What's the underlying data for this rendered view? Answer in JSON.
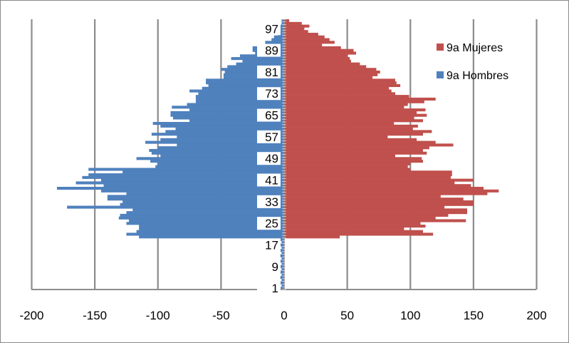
{
  "chart_data": {
    "type": "bar",
    "orientation": "horizontal",
    "title": "",
    "xlabel": "",
    "ylabel": "",
    "xlim": [
      -200,
      200
    ],
    "ylim": [
      1,
      100
    ],
    "x_ticks": [
      -200,
      -150,
      -100,
      -50,
      0,
      50,
      100,
      150,
      200
    ],
    "y_tick_labels": [
      "1",
      "9",
      "17",
      "25",
      "33",
      "41",
      "49",
      "57",
      "65",
      "73",
      "81",
      "89",
      "97"
    ],
    "grid": "vertical",
    "legend_position": "right",
    "ages": [
      1,
      2,
      3,
      4,
      5,
      6,
      7,
      8,
      9,
      10,
      11,
      12,
      13,
      14,
      15,
      16,
      17,
      18,
      19,
      20,
      21,
      22,
      23,
      24,
      25,
      26,
      27,
      28,
      29,
      30,
      31,
      32,
      33,
      34,
      35,
      36,
      37,
      38,
      39,
      40,
      41,
      42,
      43,
      44,
      45,
      46,
      47,
      48,
      49,
      50,
      51,
      52,
      53,
      54,
      55,
      56,
      57,
      58,
      59,
      60,
      61,
      62,
      63,
      64,
      65,
      66,
      67,
      68,
      69,
      70,
      71,
      72,
      73,
      74,
      75,
      76,
      77,
      78,
      79,
      80,
      81,
      82,
      83,
      84,
      85,
      86,
      87,
      88,
      89,
      90,
      91,
      92,
      93,
      94,
      95,
      96,
      97,
      98,
      99,
      100
    ],
    "series": [
      {
        "name": "9a Mujeres",
        "color": "#c0504d",
        "values": [
          0,
          0,
          0,
          0,
          0,
          0,
          0,
          0,
          0,
          0,
          0,
          0,
          0,
          0,
          0,
          0,
          0,
          0,
          0,
          44,
          118,
          110,
          95,
          112,
          108,
          144,
          120,
          130,
          145,
          145,
          127,
          150,
          150,
          142,
          124,
          161,
          170,
          158,
          148,
          135,
          150,
          132,
          133,
          133,
          100,
          98,
          100,
          110,
          109,
          88,
          113,
          110,
          115,
          134,
          120,
          105,
          82,
          110,
          117,
          102,
          106,
          87,
          110,
          103,
          113,
          105,
          112,
          95,
          98,
          111,
          120,
          99,
          88,
          85,
          83,
          92,
          89,
          88,
          70,
          74,
          76,
          73,
          65,
          60,
          53,
          52,
          50,
          57,
          55,
          45,
          30,
          40,
          36,
          32,
          27,
          19,
          16,
          20,
          14,
          4
        ],
        "note": "values by age from 1 to 100"
      },
      {
        "name": "9a Hombres",
        "values": [
          -3,
          -2,
          -3,
          -2,
          -3,
          -2,
          -3,
          -2,
          -3,
          -2,
          -3,
          -2,
          -3,
          -2,
          -3,
          -2,
          -3,
          -2,
          -3,
          -115,
          -125,
          -117,
          -115,
          -115,
          -125,
          -123,
          -131,
          -130,
          -125,
          -120,
          -172,
          -130,
          -128,
          -140,
          -140,
          -125,
          -145,
          -180,
          -143,
          -165,
          -145,
          -160,
          -155,
          -128,
          -155,
          -102,
          -100,
          -106,
          -117,
          -98,
          -105,
          -107,
          -100,
          -85,
          -110,
          -98,
          -85,
          -105,
          -94,
          -86,
          -98,
          -104,
          -75,
          -88,
          -90,
          -90,
          -75,
          -89,
          -77,
          -70,
          -70,
          -70,
          -68,
          -75,
          -65,
          -60,
          -62,
          -62,
          -48,
          -48,
          -47,
          -50,
          -45,
          -38,
          -33,
          -42,
          -35,
          -23,
          -25,
          -25,
          -15,
          -15,
          -10,
          -8,
          -5,
          -4,
          -4,
          -3,
          -2,
          -2
        ],
        "color": "#4f81bd"
      }
    ]
  }
}
